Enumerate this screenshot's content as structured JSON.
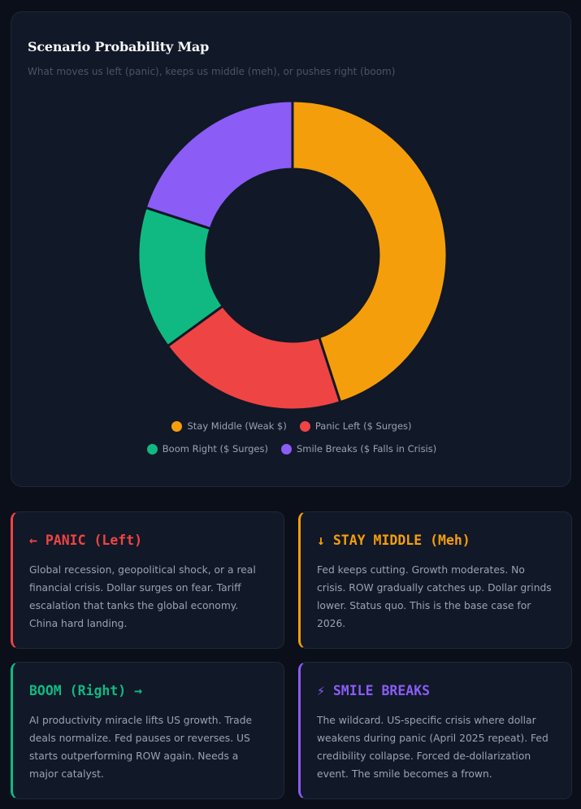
{
  "chart_card": {
    "title": "Scenario Probability Map",
    "subtitle": "What moves us left (panic), keeps us middle (meh), or pushes right (boom)"
  },
  "chart_data": {
    "type": "pie",
    "donut": true,
    "title": "Scenario Probability Map",
    "subtitle": "What moves us left (panic), keeps us middle (meh), or pushes right (boom)",
    "categories": [
      "Stay Middle (Weak $)",
      "Panic Left ($ Surges)",
      "Boom Right ($ Surges)",
      "Smile Breaks ($ Falls in Crisis)"
    ],
    "values": [
      45,
      20,
      15,
      20
    ],
    "colors": [
      "#f59e0b",
      "#ef4444",
      "#10b981",
      "#8b5cf6"
    ],
    "legend_position": "bottom"
  },
  "cards": [
    {
      "title": "← PANIC (Left)",
      "color": "#ef4444",
      "body": "Global recession, geopolitical shock, or a real financial crisis. Dollar surges on fear. Tariff escalation that tanks the global economy. China hard landing."
    },
    {
      "title": "↓ STAY MIDDLE (Meh)",
      "color": "#f59e0b",
      "body": "Fed keeps cutting. Growth moderates. No crisis. ROW gradually catches up. Dollar grinds lower. Status quo. This is the base case for 2026."
    },
    {
      "title": "BOOM (Right) →",
      "color": "#10b981",
      "body": "AI productivity miracle lifts US growth. Trade deals normalize. Fed pauses or reverses. US starts outperforming ROW again. Needs a major catalyst."
    },
    {
      "title": "⚡ SMILE BREAKS",
      "color": "#8b5cf6",
      "body": "The wildcard. US-specific crisis where dollar weakens during panic (April 2025 repeat). Fed credibility collapse. Forced de-dollarization event. The smile becomes a frown."
    }
  ]
}
